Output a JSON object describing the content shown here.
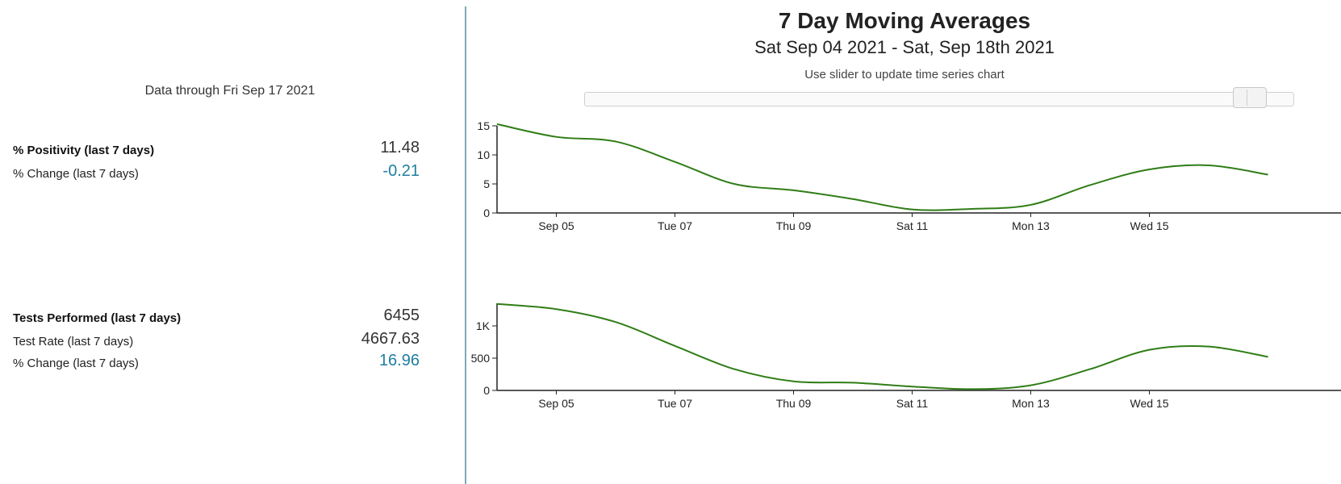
{
  "stats": {
    "data_through": "Data through Fri Sep 17 2021",
    "positivity": {
      "label": "% Positivity (last 7 days)",
      "value": "11.48",
      "change_label": "% Change (last 7 days)",
      "change_value": "-0.21"
    },
    "tests": {
      "label": "Tests Performed (last 7 days)",
      "value": "6455",
      "rate_label": "Test Rate (last 7 days)",
      "rate_value": "4667.63",
      "change_label": "% Change (last 7 days)",
      "change_value": "16.96"
    }
  },
  "header": {
    "title": "7 Day Moving Averages",
    "subtitle": "Sat Sep 04 2021 - Sat, Sep 18th 2021",
    "slider_hint": "Use slider to update time series chart"
  },
  "slider": {
    "value": 0.96
  },
  "colors": {
    "line": "#2f7d16",
    "accent": "#1f7ea1",
    "axis": "#222222"
  },
  "chart_data": [
    {
      "type": "line",
      "x": [
        "2021-09-04",
        "2021-09-05",
        "2021-09-06",
        "2021-09-07",
        "2021-09-08",
        "2021-09-09",
        "2021-09-10",
        "2021-09-11",
        "2021-09-12",
        "2021-09-13",
        "2021-09-14",
        "2021-09-15",
        "2021-09-16",
        "2021-09-17"
      ],
      "y": [
        15.3,
        13.1,
        12.3,
        8.8,
        5.0,
        3.9,
        2.4,
        0.6,
        0.7,
        1.4,
        4.8,
        7.5,
        8.2,
        6.6
      ],
      "ylim": [
        0,
        15
      ],
      "yticks": [
        0,
        5,
        10,
        15
      ],
      "yticklabels": [
        "0",
        "5",
        "10",
        "15"
      ],
      "xticklabels": [
        "Sep 05",
        "Tue 07",
        "Thu 09",
        "Sat 11",
        "Mon 13",
        "Wed 15"
      ],
      "title": "",
      "xlabel": "",
      "ylabel": ""
    },
    {
      "type": "line",
      "x": [
        "2021-09-04",
        "2021-09-05",
        "2021-09-06",
        "2021-09-07",
        "2021-09-08",
        "2021-09-09",
        "2021-09-10",
        "2021-09-11",
        "2021-09-12",
        "2021-09-13",
        "2021-09-14",
        "2021-09-15",
        "2021-09-16",
        "2021-09-17"
      ],
      "y": [
        1340,
        1260,
        1060,
        690,
        330,
        140,
        120,
        60,
        20,
        80,
        330,
        630,
        680,
        520
      ],
      "ylim": [
        0,
        1350
      ],
      "yticks": [
        0,
        500,
        1000
      ],
      "yticklabels": [
        "0",
        "500",
        "1K"
      ],
      "xticklabels": [
        "Sep 05",
        "Tue 07",
        "Thu 09",
        "Sat 11",
        "Mon 13",
        "Wed 15"
      ],
      "title": "",
      "xlabel": "",
      "ylabel": ""
    }
  ]
}
